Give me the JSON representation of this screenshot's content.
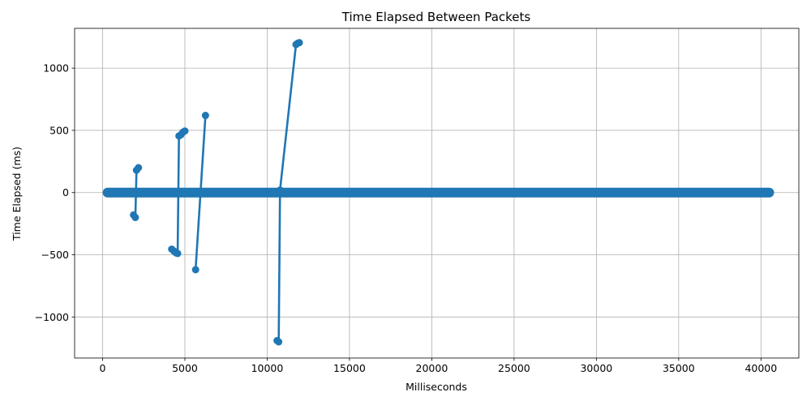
{
  "chart_data": {
    "type": "line",
    "title": "Time Elapsed Between Packets",
    "xlabel": "Milliseconds",
    "ylabel": "Time Elapsed (ms)",
    "xlim": [
      -1700,
      42300
    ],
    "ylim": [
      -1330,
      1320
    ],
    "xticks": [
      0,
      5000,
      10000,
      15000,
      20000,
      25000,
      30000,
      35000,
      40000
    ],
    "yticks": [
      -1000,
      -500,
      0,
      500,
      1000
    ],
    "xtick_labels": [
      "0",
      "5000",
      "10000",
      "15000",
      "20000",
      "25000",
      "30000",
      "35000",
      "40000"
    ],
    "ytick_labels": [
      "−1000",
      "−500",
      "0",
      "500",
      "1000"
    ],
    "grid": true,
    "color": "#1f77b4",
    "baseline": {
      "x_start": 300,
      "x_end": 40500,
      "y": 0
    },
    "segments": [
      {
        "x": [
          1880,
          1990,
          2060,
          2180
        ],
        "y": [
          -180,
          -200,
          180,
          200
        ]
      },
      {
        "x": [
          4200,
          4330,
          4460,
          4560,
          4640,
          4760,
          4880,
          5000
        ],
        "y": [
          -455,
          -470,
          -485,
          -490,
          455,
          465,
          485,
          495
        ]
      },
      {
        "x": [
          5650,
          6250
        ],
        "y": [
          -620,
          620
        ]
      },
      {
        "x": [
          10600,
          10700,
          10780,
          11750,
          11850,
          11950
        ],
        "y": [
          -1190,
          -1200,
          20,
          1190,
          1200,
          1205
        ]
      }
    ]
  }
}
